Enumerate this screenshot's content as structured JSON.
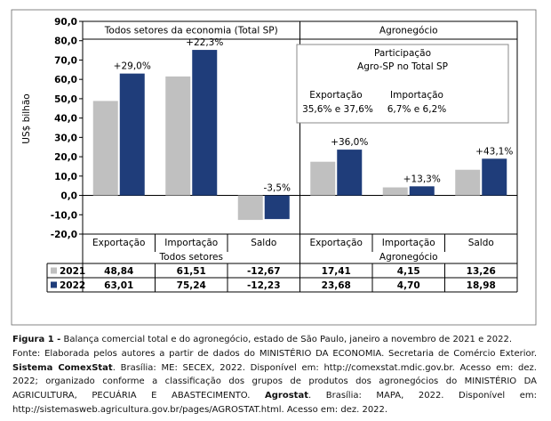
{
  "chart_data": {
    "type": "bar",
    "ylabel": "US$ bilhão",
    "ylim": [
      -20,
      90
    ],
    "yticks": [
      "90,0",
      "80,0",
      "70,0",
      "60,0",
      "50,0",
      "40,0",
      "30,0",
      "20,0",
      "10,0",
      "0,0",
      "-10,0",
      "-20,0"
    ],
    "grid": false,
    "panels": [
      {
        "title": "Todos setores da economia (Total SP)",
        "group_label": "Todos setores"
      },
      {
        "title": "Agronegócio",
        "group_label": "Agronegócio"
      }
    ],
    "categories": [
      "Exportação",
      "Importação",
      "Saldo",
      "Exportação",
      "Importação",
      "Saldo"
    ],
    "series": [
      {
        "name": "2021",
        "color": "#c0c0c0",
        "values": [
          48.84,
          61.51,
          -12.67,
          17.41,
          4.15,
          13.26
        ],
        "labels": [
          "48,84",
          "61,51",
          "-12,67",
          "17,41",
          "4,15",
          "13,26"
        ]
      },
      {
        "name": "2022",
        "color": "#1f3d7a",
        "values": [
          63.01,
          75.24,
          -12.23,
          23.68,
          4.7,
          18.98
        ],
        "labels": [
          "63,01",
          "75,24",
          "-12,23",
          "23,68",
          "4,70",
          "18,98"
        ]
      }
    ],
    "annotations": [
      "+29,0%",
      "+22,3%",
      "-3,5%",
      "+36,0%",
      "+13,3%",
      "+43,1%"
    ],
    "inset": {
      "title_line1": "Participação",
      "title_line2": "Agro-SP  no Total SP",
      "col1_label": "Exportação",
      "col1_value": "35,6% e 37,6%",
      "col2_label": "Importação",
      "col2_value": "6,7% e 6,2%"
    }
  },
  "caption": {
    "figure_label": "Figura 1 -",
    "title_rest": " Balança comercial total e do agronegócio, estado de São Paulo, janeiro a novembro de 2021 e 2022.",
    "source_part1": "Fonte: Elaborada pelos autores a partir de dados do MINISTÉRIO DA ECONOMIA. Secretaria de Comércio Exterior. ",
    "source_bold1": "Sistema ComexStat",
    "source_part2": ". Brasília: ME: SECEX, 2022. Disponível em: http://comexstat.mdic.gov.br. Acesso em: dez. 2022; organizado conforme a classificação dos grupos de produtos dos agronegócios do MINISTÉRIO DA AGRICULTURA, PECUÁRIA E ABASTECIMENTO. ",
    "source_bold2": "Agrostat",
    "source_part3": ". Brasília: MAPA, 2022. Disponível em: http://sistemasweb.agricultura.gov.br/pages/AGROSTAT.html. Acesso em: dez. 2022."
  }
}
